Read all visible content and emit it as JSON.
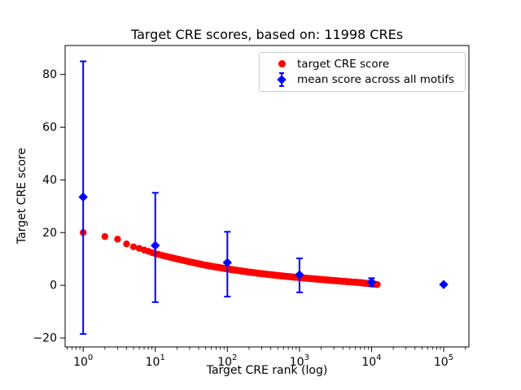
{
  "chart_data": {
    "type": "scatter",
    "title": "Target CRE scores, based on: 11998 CREs",
    "xlabel": "Target CRE rank (log)",
    "ylabel": "Target CRE score",
    "x_scale": "log",
    "xlim": [
      0.562,
      223872
    ],
    "ylim": [
      -23.4,
      91
    ],
    "x_ticks": [
      1,
      10,
      100,
      1000,
      10000,
      100000
    ],
    "y_ticks": [
      -20,
      0,
      20,
      40,
      60,
      80
    ],
    "grid": false,
    "legend_position": "upper right",
    "n_cres": 11998,
    "series": [
      {
        "name": "target CRE score",
        "type": "scatter",
        "marker": "circle",
        "color": "#ff0000",
        "n_points": 11998,
        "anchor_points": [
          [
            1,
            20.0
          ],
          [
            2,
            18.5
          ],
          [
            3,
            17.5
          ],
          [
            4,
            15.7
          ],
          [
            5,
            14.6
          ],
          [
            6,
            14.0
          ],
          [
            7,
            13.4
          ],
          [
            8,
            12.9
          ],
          [
            9,
            12.4
          ],
          [
            10,
            12.0
          ],
          [
            15,
            10.8
          ],
          [
            20,
            10.0
          ],
          [
            30,
            8.9
          ],
          [
            50,
            7.6
          ],
          [
            70,
            6.9
          ],
          [
            100,
            6.2
          ],
          [
            150,
            5.5
          ],
          [
            200,
            5.0
          ],
          [
            300,
            4.4
          ],
          [
            500,
            3.7
          ],
          [
            700,
            3.3
          ],
          [
            1000,
            2.9
          ],
          [
            1500,
            2.5
          ],
          [
            2000,
            2.2
          ],
          [
            3000,
            1.8
          ],
          [
            5000,
            1.3
          ],
          [
            7000,
            1.0
          ],
          [
            10000,
            0.5
          ],
          [
            11998,
            0.3
          ]
        ]
      },
      {
        "name": "mean score across all motifs",
        "type": "errorbar",
        "marker": "diamond",
        "color": "#0000ff",
        "points": [
          {
            "x": 1,
            "y": 33.5,
            "lo": -18.5,
            "hi": 85.0
          },
          {
            "x": 10,
            "y": 15.1,
            "lo": -6.4,
            "hi": 35.1
          },
          {
            "x": 100,
            "y": 8.6,
            "lo": -4.3,
            "hi": 20.3
          },
          {
            "x": 1000,
            "y": 4.0,
            "lo": -2.7,
            "hi": 10.2
          },
          {
            "x": 10000,
            "y": 1.2,
            "lo": -0.3,
            "hi": 2.7
          },
          {
            "x": 100000,
            "y": 0.3,
            "lo": 0.0,
            "hi": 0.6
          }
        ]
      }
    ]
  },
  "colors": {
    "target_series": "#ff0000",
    "mean_series": "#0000ff",
    "axis": "#000000",
    "legend_border": "#cccccc",
    "background": "#ffffff"
  }
}
